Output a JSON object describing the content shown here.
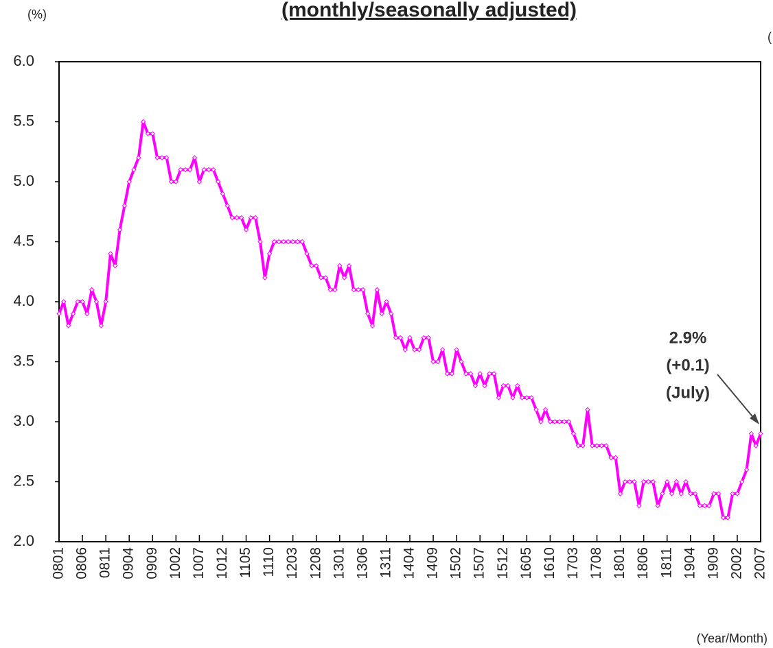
{
  "chart_data": {
    "type": "line",
    "title": "(monthly/seasonally adjusted)",
    "y_unit": "(%)",
    "x_label": "(Year/Month)",
    "edge_note": "(",
    "annotations": [
      "2.9%",
      "(+0.1)",
      "(July)"
    ],
    "color": "#ff00ff",
    "ylim": [
      2.0,
      6.0
    ],
    "yticks": [
      {
        "value": 2.0,
        "label": "2.0"
      },
      {
        "value": 2.5,
        "label": "2.5"
      },
      {
        "value": 3.0,
        "label": "3.0"
      },
      {
        "value": 3.5,
        "label": "3.5"
      },
      {
        "value": 4.0,
        "label": "4.0"
      },
      {
        "value": 4.5,
        "label": "4.5"
      },
      {
        "value": 5.0,
        "label": "5.0"
      },
      {
        "value": 5.5,
        "label": "5.5"
      },
      {
        "value": 6.0,
        "label": "6.0"
      }
    ],
    "categories": [
      "0801",
      null,
      null,
      null,
      null,
      "0806",
      null,
      null,
      null,
      null,
      "0811",
      null,
      null,
      null,
      null,
      "0904",
      null,
      null,
      null,
      null,
      "0909",
      null,
      null,
      null,
      null,
      "1002",
      null,
      null,
      null,
      null,
      "1007",
      null,
      null,
      null,
      null,
      "1012",
      null,
      null,
      null,
      null,
      "1105",
      null,
      null,
      null,
      null,
      "1110",
      null,
      null,
      null,
      null,
      "1203",
      null,
      null,
      null,
      null,
      "1208",
      null,
      null,
      null,
      null,
      "1301",
      null,
      null,
      null,
      null,
      "1306",
      null,
      null,
      null,
      null,
      "1311",
      null,
      null,
      null,
      null,
      "1404",
      null,
      null,
      null,
      null,
      "1409",
      null,
      null,
      null,
      null,
      "1502",
      null,
      null,
      null,
      null,
      "1507",
      null,
      null,
      null,
      null,
      "1512",
      null,
      null,
      null,
      null,
      "1605",
      null,
      null,
      null,
      null,
      "1610",
      null,
      null,
      null,
      null,
      "1703",
      null,
      null,
      null,
      null,
      "1708",
      null,
      null,
      null,
      null,
      "1801",
      null,
      null,
      null,
      null,
      "1806",
      null,
      null,
      null,
      null,
      "1811",
      null,
      null,
      null,
      null,
      "1904",
      null,
      null,
      null,
      null,
      "1909",
      null,
      null,
      null,
      null,
      "2002",
      null,
      null,
      null,
      null,
      "2007"
    ],
    "values": [
      3.9,
      4.0,
      3.8,
      3.9,
      4.0,
      4.0,
      3.9,
      4.1,
      4.0,
      3.8,
      4.0,
      4.4,
      4.3,
      4.6,
      4.8,
      5.0,
      5.1,
      5.2,
      5.5,
      5.4,
      5.4,
      5.2,
      5.2,
      5.2,
      5.0,
      5.0,
      5.1,
      5.1,
      5.1,
      5.2,
      5.0,
      5.1,
      5.1,
      5.1,
      5.0,
      4.9,
      4.8,
      4.7,
      4.7,
      4.7,
      4.6,
      4.7,
      4.7,
      4.5,
      4.2,
      4.4,
      4.5,
      4.5,
      4.5,
      4.5,
      4.5,
      4.5,
      4.5,
      4.4,
      4.3,
      4.3,
      4.2,
      4.2,
      4.1,
      4.1,
      4.3,
      4.2,
      4.3,
      4.1,
      4.1,
      4.1,
      3.9,
      3.8,
      4.1,
      3.9,
      4.0,
      3.9,
      3.7,
      3.7,
      3.6,
      3.7,
      3.6,
      3.6,
      3.7,
      3.7,
      3.5,
      3.5,
      3.6,
      3.4,
      3.4,
      3.6,
      3.5,
      3.4,
      3.4,
      3.3,
      3.4,
      3.3,
      3.4,
      3.4,
      3.2,
      3.3,
      3.3,
      3.2,
      3.3,
      3.2,
      3.2,
      3.2,
      3.1,
      3.0,
      3.1,
      3.0,
      3.0,
      3.0,
      3.0,
      3.0,
      2.9,
      2.8,
      2.8,
      3.1,
      2.8,
      2.8,
      2.8,
      2.8,
      2.7,
      2.7,
      2.4,
      2.5,
      2.5,
      2.5,
      2.3,
      2.5,
      2.5,
      2.5,
      2.3,
      2.4,
      2.5,
      2.4,
      2.5,
      2.4,
      2.5,
      2.4,
      2.4,
      2.3,
      2.3,
      2.3,
      2.4,
      2.4,
      2.2,
      2.2,
      2.4,
      2.4,
      2.5,
      2.6,
      2.9,
      2.8,
      2.9
    ]
  }
}
